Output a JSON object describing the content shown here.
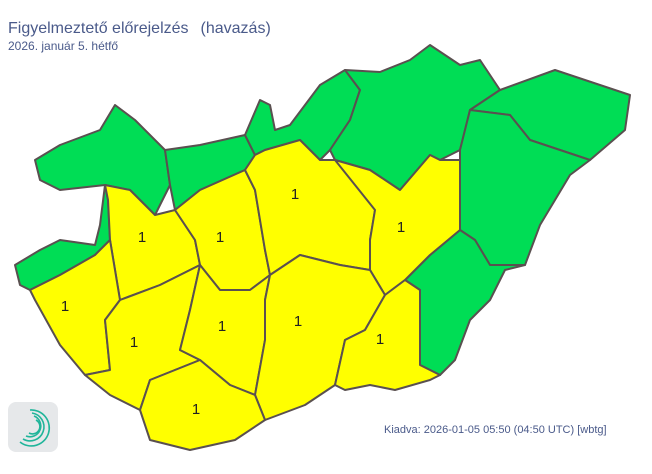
{
  "header": {
    "title": "Figyelmeztető előrejelzés",
    "subtitle": "(havazás)",
    "date": "2026. január 5. hétfő"
  },
  "footer": {
    "issued": "Kiadva: 2026-01-05 05:50 (04:50 UTC) [wbtg]"
  },
  "legend_colors": {
    "level_0": "#00dd55",
    "level_1": "#ffff00",
    "border": "#5a5050"
  },
  "regions": [
    {
      "level": 0,
      "label": ""
    },
    {
      "level": 0,
      "label": ""
    },
    {
      "level": 0,
      "label": ""
    },
    {
      "level": 0,
      "label": ""
    },
    {
      "level": 0,
      "label": ""
    },
    {
      "level": 0,
      "label": ""
    },
    {
      "level": 0,
      "label": ""
    },
    {
      "level": 0,
      "label": ""
    },
    {
      "level": 1,
      "label": "1"
    },
    {
      "level": 1,
      "label": "1"
    },
    {
      "level": 1,
      "label": "1"
    },
    {
      "level": 1,
      "label": "1"
    },
    {
      "level": 1,
      "label": "1"
    },
    {
      "level": 1,
      "label": "1"
    },
    {
      "level": 1,
      "label": "1"
    },
    {
      "level": 1,
      "label": "1"
    },
    {
      "level": 1,
      "label": "1"
    },
    {
      "level": 1,
      "label": "1"
    }
  ]
}
